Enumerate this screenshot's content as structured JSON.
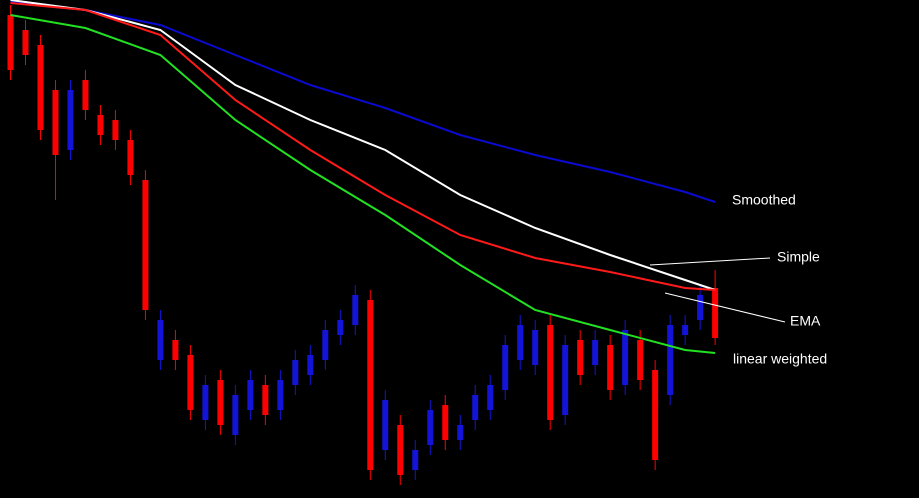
{
  "chart_data": {
    "type": "candlestick",
    "xlim": [
      -0.7,
      60.6
    ],
    "ylim": [
      0,
      498
    ],
    "up_color": "#1414d8",
    "down_color": "#ff0000",
    "open": [
      483,
      468,
      453,
      408,
      348,
      418,
      383,
      378,
      358,
      318,
      138,
      158,
      143,
      78,
      118,
      63,
      88,
      113,
      88,
      113,
      123,
      138,
      163,
      173,
      198,
      48,
      73,
      28,
      53,
      93,
      58,
      78,
      88,
      108,
      138,
      133,
      173,
      83,
      158,
      133,
      153,
      113,
      158,
      128,
      103,
      163,
      178,
      210
    ],
    "high": [
      493,
      478,
      463,
      418,
      418,
      428,
      393,
      388,
      368,
      328,
      188,
      168,
      153,
      123,
      128,
      113,
      128,
      123,
      128,
      148,
      153,
      178,
      188,
      213,
      208,
      108,
      83,
      58,
      98,
      103,
      83,
      113,
      123,
      163,
      183,
      178,
      183,
      163,
      168,
      168,
      163,
      178,
      168,
      138,
      183,
      183,
      213,
      228
    ],
    "low": [
      418,
      433,
      358,
      298,
      338,
      378,
      353,
      348,
      313,
      178,
      128,
      128,
      78,
      68,
      63,
      53,
      78,
      73,
      78,
      103,
      113,
      128,
      153,
      163,
      18,
      38,
      13,
      18,
      43,
      48,
      48,
      68,
      78,
      98,
      128,
      123,
      68,
      73,
      113,
      123,
      98,
      103,
      108,
      28,
      93,
      153,
      168,
      153
    ],
    "close": [
      428,
      443,
      368,
      343,
      408,
      388,
      363,
      358,
      323,
      188,
      178,
      138,
      88,
      113,
      73,
      103,
      118,
      83,
      118,
      138,
      143,
      168,
      178,
      203,
      28,
      98,
      23,
      48,
      88,
      58,
      73,
      103,
      113,
      153,
      173,
      168,
      78,
      153,
      123,
      158,
      108,
      168,
      118,
      38,
      173,
      173,
      203,
      160
    ],
    "series": [
      {
        "name": "Smoothed",
        "color": "#0a0ad0",
        "x": [
          0,
          5,
          10,
          15,
          20,
          25,
          30,
          35,
          40,
          45,
          47
        ],
        "values": [
          496,
          488,
          473,
          443,
          413,
          390,
          363,
          343,
          326,
          306,
          296
        ]
      },
      {
        "name": "Simple",
        "color": "#ffffff",
        "x": [
          0,
          5,
          10,
          15,
          20,
          25,
          30,
          35,
          40,
          45,
          47
        ],
        "values": [
          498,
          488,
          468,
          413,
          378,
          348,
          303,
          270,
          243,
          218,
          208
        ]
      },
      {
        "name": "EMA",
        "color": "#ff1a1a",
        "x": [
          0,
          5,
          10,
          15,
          20,
          25,
          30,
          35,
          40,
          45,
          47
        ],
        "values": [
          495,
          488,
          463,
          398,
          348,
          303,
          263,
          240,
          226,
          210,
          208
        ]
      },
      {
        "name": "linear weighted",
        "color": "#22e022",
        "x": [
          0,
          5,
          10,
          15,
          20,
          25,
          30,
          35,
          40,
          45,
          47
        ],
        "values": [
          483,
          470,
          443,
          378,
          328,
          283,
          233,
          188,
          168,
          148,
          145
        ]
      }
    ]
  }
}
